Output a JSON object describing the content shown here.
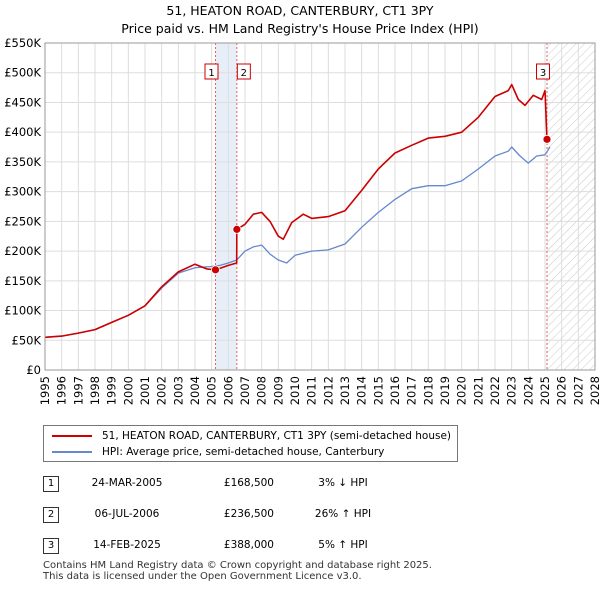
{
  "header": {
    "title": "51, HEATON ROAD, CANTERBURY, CT1 3PY",
    "subtitle": "Price paid vs. HM Land Registry's House Price Index (HPI)"
  },
  "chart_data": {
    "type": "line",
    "title": "51, HEATON ROAD, CANTERBURY, CT1 3PY",
    "subtitle": "Price paid vs. HM Land Registry's House Price Index (HPI)",
    "xlabel": "",
    "ylabel": "",
    "xlim": [
      1995,
      2028
    ],
    "ylim": [
      0,
      550000
    ],
    "y_ticks": [
      0,
      50000,
      100000,
      150000,
      200000,
      250000,
      300000,
      350000,
      400000,
      450000,
      500000,
      550000
    ],
    "y_tick_labels": [
      "£0",
      "£50K",
      "£100K",
      "£150K",
      "£200K",
      "£250K",
      "£300K",
      "£350K",
      "£400K",
      "£450K",
      "£500K",
      "£550K"
    ],
    "x_ticks": [
      1995,
      1996,
      1997,
      1998,
      1999,
      2000,
      2001,
      2002,
      2003,
      2004,
      2005,
      2006,
      2007,
      2008,
      2009,
      2010,
      2011,
      2012,
      2013,
      2014,
      2015,
      2016,
      2017,
      2018,
      2019,
      2020,
      2021,
      2022,
      2023,
      2024,
      2025,
      2026,
      2027,
      2028
    ],
    "x_tick_labels": [
      "1995",
      "1996",
      "1997",
      "1998",
      "1999",
      "2000",
      "2001",
      "2002",
      "2003",
      "2004",
      "2005",
      "2006",
      "2007",
      "2008",
      "2009",
      "2010",
      "2011",
      "2012",
      "2013",
      "2014",
      "2015",
      "2016",
      "2017",
      "2018",
      "2019",
      "2020",
      "2021",
      "2022",
      "2023",
      "2024",
      "2025",
      "2026",
      "2027",
      "2028"
    ],
    "grid": true,
    "series": [
      {
        "name": "51, HEATON ROAD, CANTERBURY, CT1 3PY (semi-detached house)",
        "color": "#cc0000",
        "x": [
          1995.0,
          1996.0,
          1997.0,
          1998.0,
          1999.0,
          2000.0,
          2001.0,
          2002.0,
          2003.0,
          2004.0,
          2004.7,
          2005.23,
          2005.6,
          2006.0,
          2006.5,
          2006.51,
          2007.0,
          2007.5,
          2008.0,
          2008.5,
          2009.0,
          2009.3,
          2009.8,
          2010.5,
          2011.0,
          2012.0,
          2013.0,
          2014.0,
          2015.0,
          2016.0,
          2017.0,
          2018.0,
          2019.0,
          2020.0,
          2021.0,
          2022.0,
          2022.8,
          2023.0,
          2023.4,
          2023.8,
          2024.3,
          2024.8,
          2025.0,
          2025.12
        ],
        "values": [
          55000,
          57000,
          62000,
          68000,
          80000,
          92000,
          108000,
          140000,
          165000,
          178000,
          170000,
          168500,
          172000,
          176000,
          180000,
          236500,
          245000,
          262000,
          265000,
          250000,
          225000,
          220000,
          248000,
          262000,
          255000,
          258000,
          268000,
          302000,
          338000,
          365000,
          378000,
          390000,
          393000,
          400000,
          425000,
          460000,
          470000,
          480000,
          455000,
          445000,
          462000,
          455000,
          470000,
          388000
        ]
      },
      {
        "name": "HPI: Average price, semi-detached house, Canterbury",
        "color": "#6688cc",
        "x": [
          1995.0,
          1996.0,
          1997.0,
          1998.0,
          1999.0,
          2000.0,
          2001.0,
          2002.0,
          2003.0,
          2004.0,
          2005.0,
          2005.5,
          2006.0,
          2006.5,
          2007.0,
          2007.5,
          2008.0,
          2008.5,
          2009.0,
          2009.5,
          2010.0,
          2011.0,
          2012.0,
          2013.0,
          2014.0,
          2015.0,
          2016.0,
          2017.0,
          2018.0,
          2019.0,
          2020.0,
          2021.0,
          2022.0,
          2022.8,
          2023.0,
          2023.5,
          2024.0,
          2024.5,
          2025.0,
          2025.3
        ],
        "values": [
          55000,
          57000,
          62000,
          68000,
          80000,
          92000,
          108000,
          138000,
          163000,
          172000,
          174000,
          176000,
          180000,
          185000,
          200000,
          207000,
          210000,
          195000,
          185000,
          180000,
          193000,
          200000,
          202000,
          212000,
          240000,
          265000,
          287000,
          305000,
          310000,
          310000,
          318000,
          338000,
          360000,
          368000,
          375000,
          360000,
          348000,
          360000,
          362000,
          375000
        ]
      }
    ],
    "transactions": [
      {
        "label": "1",
        "x": 2005.23,
        "value": 168500
      },
      {
        "label": "2",
        "x": 2006.51,
        "value": 236500
      },
      {
        "label": "3",
        "x": 2025.12,
        "value": 388000
      }
    ],
    "hatched_region_from": 2025.12,
    "legend_position": "below"
  },
  "legend": {
    "items": [
      {
        "label": "51, HEATON ROAD, CANTERBURY, CT1 3PY (semi-detached house)",
        "color": "#cc0000"
      },
      {
        "label": "HPI: Average price, semi-detached house, Canterbury",
        "color": "#6688cc"
      }
    ]
  },
  "transactions": [
    {
      "num": "1",
      "date": "24-MAR-2005",
      "price": "£168,500",
      "hpi": "3% ↓ HPI"
    },
    {
      "num": "2",
      "date": "06-JUL-2006",
      "price": "£236,500",
      "hpi": "26% ↑ HPI"
    },
    {
      "num": "3",
      "date": "14-FEB-2025",
      "price": "£388,000",
      "hpi": "5% ↑ HPI"
    }
  ],
  "footer": {
    "line1": "Contains HM Land Registry data © Crown copyright and database right 2025.",
    "line2": "This data is licensed under the Open Government Licence v3.0."
  }
}
